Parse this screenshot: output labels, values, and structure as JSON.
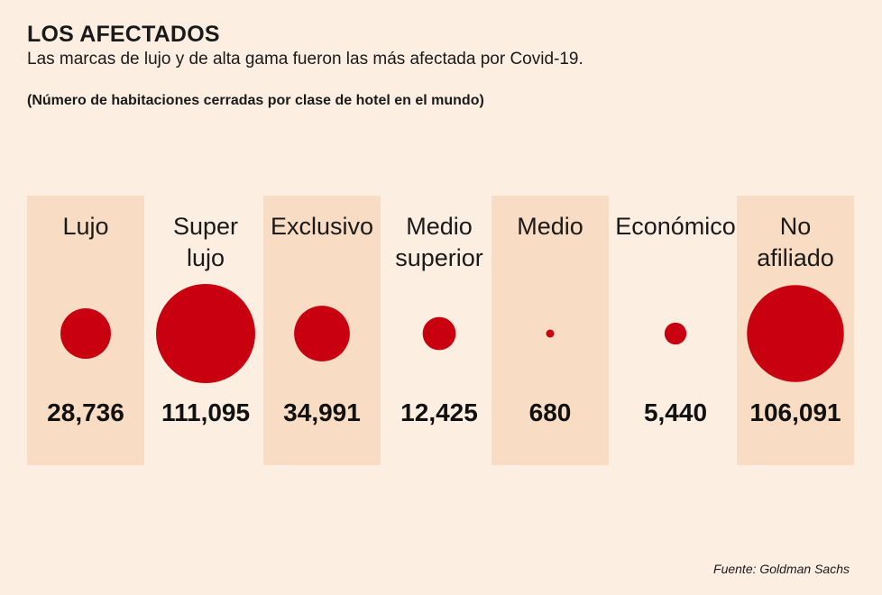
{
  "header": {
    "title": "LOS AFECTADOS",
    "subtitle": "Las marcas de lujo y de alta gama fueron las más afectada por Covid-19.",
    "note": "(Número de habitaciones cerradas por clase de hotel en el mundo)"
  },
  "footer": {
    "source": "Fuente: Goldman Sachs"
  },
  "colors": {
    "background": "#fdeee2",
    "highlight_column": "#f8dcc3",
    "bubble": "#c8000f"
  },
  "chart_data": {
    "type": "bubble",
    "categories": [
      {
        "lines": [
          "Lujo"
        ],
        "value_label": "28,736",
        "highlighted": true
      },
      {
        "lines": [
          "Super",
          "lujo"
        ],
        "value_label": "111,095",
        "highlighted": false
      },
      {
        "lines": [
          "Exclusivo"
        ],
        "value_label": "34,991",
        "highlighted": true
      },
      {
        "lines": [
          "Medio",
          "superior"
        ],
        "value_label": "12,425",
        "highlighted": false
      },
      {
        "lines": [
          "Medio"
        ],
        "value_label": "680",
        "highlighted": true
      },
      {
        "lines": [
          "Económico"
        ],
        "value_label": "5,440",
        "highlighted": false
      },
      {
        "lines": [
          "No",
          "afiliado"
        ],
        "value_label": "106,091",
        "highlighted": true
      }
    ],
    "values": [
      28736,
      111095,
      34991,
      12425,
      680,
      5440,
      106091
    ]
  }
}
